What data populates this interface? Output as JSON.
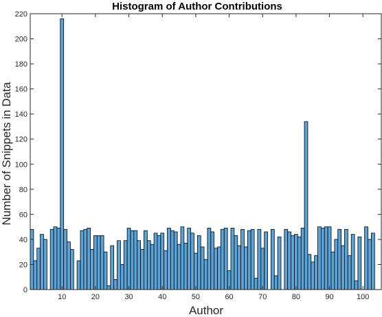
{
  "chart_data": {
    "type": "bar",
    "title": "Histogram of Author Contributions",
    "xlabel": "Author",
    "ylabel": "Number of Snippets in Data",
    "xlim": [
      0.5,
      105.5
    ],
    "ylim": [
      0,
      220
    ],
    "xticks": [
      10,
      20,
      30,
      40,
      50,
      60,
      70,
      80,
      90,
      100
    ],
    "yticks": [
      0,
      20,
      40,
      60,
      80,
      100,
      120,
      140,
      160,
      180,
      200,
      220
    ],
    "grid": false,
    "legend": "none",
    "bar_color": "#5ba4d8",
    "edge_color": "#000000",
    "x": [
      1,
      2,
      3,
      4,
      5,
      6,
      7,
      8,
      9,
      10,
      11,
      12,
      13,
      14,
      15,
      16,
      17,
      18,
      19,
      20,
      21,
      22,
      23,
      24,
      25,
      26,
      27,
      28,
      29,
      30,
      31,
      32,
      33,
      34,
      35,
      36,
      37,
      38,
      39,
      40,
      41,
      42,
      43,
      44,
      45,
      46,
      47,
      48,
      49,
      50,
      51,
      52,
      53,
      54,
      55,
      56,
      57,
      58,
      59,
      60,
      61,
      62,
      63,
      64,
      65,
      66,
      67,
      68,
      69,
      70,
      71,
      72,
      73,
      74,
      75,
      76,
      77,
      78,
      79,
      80,
      81,
      82,
      83,
      84,
      85,
      86,
      87,
      88,
      89,
      90,
      91,
      92,
      93,
      94,
      95,
      96,
      97,
      98,
      99,
      100,
      101,
      102,
      103,
      104,
      105
    ],
    "values": [
      48,
      23,
      33,
      44,
      40,
      0,
      48,
      50,
      49,
      216,
      48,
      38,
      32,
      0,
      23,
      47,
      48,
      49,
      32,
      43,
      43,
      43,
      30,
      3,
      35,
      8,
      39,
      20,
      39,
      49,
      47,
      47,
      39,
      32,
      47,
      39,
      36,
      45,
      43,
      45,
      31,
      49,
      47,
      46,
      36,
      50,
      37,
      49,
      45,
      29,
      43,
      34,
      24,
      49,
      46,
      33,
      34,
      48,
      49,
      15,
      49,
      43,
      35,
      48,
      34,
      47,
      48,
      9,
      48,
      33,
      46,
      0,
      48,
      11,
      42,
      0,
      48,
      46,
      43,
      44,
      42,
      49,
      134,
      28,
      22,
      27,
      50,
      49,
      50,
      50,
      30,
      40,
      48,
      35,
      48,
      27,
      44,
      7,
      42,
      0,
      50,
      40,
      45,
      0,
      0
    ]
  }
}
